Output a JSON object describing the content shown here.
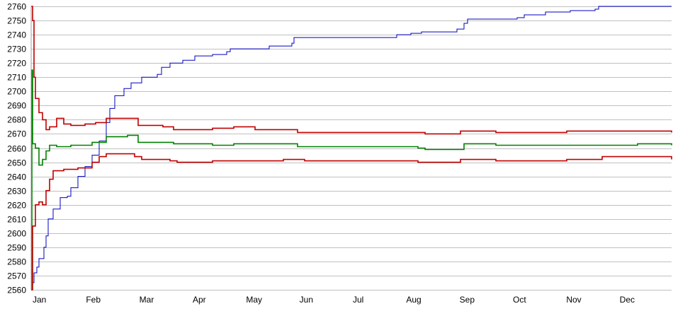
{
  "chart_data": {
    "type": "line",
    "title": "",
    "xlabel": "",
    "ylabel": "",
    "ylim": [
      2560,
      2760
    ],
    "y_ticks": [
      2560,
      2570,
      2580,
      2590,
      2600,
      2610,
      2620,
      2630,
      2640,
      2650,
      2660,
      2670,
      2680,
      2690,
      2700,
      2710,
      2720,
      2730,
      2740,
      2750,
      2760
    ],
    "x_tick_labels": [
      "Jan",
      "Feb",
      "Mar",
      "Apr",
      "May",
      "Jun",
      "Jul",
      "Aug",
      "Sep",
      "Oct",
      "Nov",
      "Dec"
    ],
    "grid": "horizontal",
    "legend": "none",
    "series": [
      {
        "color": "#0000c0",
        "points": [
          [
            1,
            2560
          ],
          [
            2,
            2565
          ],
          [
            4,
            2572
          ],
          [
            8,
            2576
          ],
          [
            11,
            2582
          ],
          [
            18,
            2590
          ],
          [
            21,
            2598
          ],
          [
            24,
            2610
          ],
          [
            31,
            2617
          ],
          [
            41,
            2625
          ],
          [
            51,
            2626
          ],
          [
            56,
            2632
          ],
          [
            66,
            2640
          ],
          [
            76,
            2647
          ],
          [
            86,
            2655
          ],
          [
            96,
            2665
          ],
          [
            106,
            2678
          ],
          [
            111,
            2688
          ],
          [
            118,
            2697
          ],
          [
            131,
            2702
          ],
          [
            141,
            2706
          ],
          [
            156,
            2710
          ],
          [
            178,
            2712
          ],
          [
            184,
            2717
          ],
          [
            196,
            2720
          ],
          [
            214,
            2722
          ],
          [
            231,
            2725
          ],
          [
            256,
            2726
          ],
          [
            276,
            2728
          ],
          [
            281,
            2730
          ],
          [
            336,
            2732
          ],
          [
            368,
            2734
          ],
          [
            371,
            2738
          ],
          [
            511,
            2738
          ],
          [
            516,
            2740
          ],
          [
            536,
            2741
          ],
          [
            551,
            2742
          ],
          [
            601,
            2744
          ],
          [
            611,
            2748
          ],
          [
            616,
            2751
          ],
          [
            686,
            2752
          ],
          [
            696,
            2754
          ],
          [
            726,
            2756
          ],
          [
            761,
            2757
          ],
          [
            796,
            2758
          ],
          [
            801,
            2760
          ],
          [
            904,
            2760
          ]
        ]
      },
      {
        "color": "#c00000",
        "points": [
          [
            0,
            2760
          ],
          [
            2,
            2750
          ],
          [
            4,
            2710
          ],
          [
            6,
            2695
          ],
          [
            11,
            2685
          ],
          [
            16,
            2680
          ],
          [
            21,
            2673
          ],
          [
            26,
            2675
          ],
          [
            36,
            2681
          ],
          [
            46,
            2677
          ],
          [
            56,
            2676
          ],
          [
            76,
            2677
          ],
          [
            91,
            2678
          ],
          [
            106,
            2681
          ],
          [
            126,
            2681
          ],
          [
            141,
            2681
          ],
          [
            151,
            2676
          ],
          [
            186,
            2675
          ],
          [
            201,
            2673
          ],
          [
            256,
            2674
          ],
          [
            286,
            2675
          ],
          [
            316,
            2673
          ],
          [
            376,
            2671
          ],
          [
            546,
            2671
          ],
          [
            556,
            2670
          ],
          [
            606,
            2672
          ],
          [
            656,
            2671
          ],
          [
            756,
            2672
          ],
          [
            856,
            2672
          ],
          [
            904,
            2671
          ]
        ]
      },
      {
        "color": "#008000",
        "points": [
          [
            0,
            2560
          ],
          [
            1,
            2715
          ],
          [
            2,
            2663
          ],
          [
            6,
            2660
          ],
          [
            11,
            2648
          ],
          [
            16,
            2652
          ],
          [
            21,
            2658
          ],
          [
            26,
            2662
          ],
          [
            36,
            2661
          ],
          [
            56,
            2662
          ],
          [
            86,
            2664
          ],
          [
            106,
            2668
          ],
          [
            136,
            2669
          ],
          [
            151,
            2664
          ],
          [
            201,
            2663
          ],
          [
            256,
            2662
          ],
          [
            286,
            2663
          ],
          [
            376,
            2661
          ],
          [
            546,
            2660
          ],
          [
            556,
            2659
          ],
          [
            611,
            2663
          ],
          [
            656,
            2662
          ],
          [
            856,
            2663
          ],
          [
            904,
            2662
          ]
        ]
      },
      {
        "color": "#c00000",
        "points": [
          [
            0,
            2560
          ],
          [
            2,
            2605
          ],
          [
            6,
            2620
          ],
          [
            11,
            2622
          ],
          [
            16,
            2620
          ],
          [
            21,
            2630
          ],
          [
            26,
            2638
          ],
          [
            31,
            2644
          ],
          [
            46,
            2645
          ],
          [
            66,
            2646
          ],
          [
            86,
            2650
          ],
          [
            96,
            2654
          ],
          [
            106,
            2656
          ],
          [
            146,
            2654
          ],
          [
            156,
            2652
          ],
          [
            196,
            2651
          ],
          [
            206,
            2650
          ],
          [
            256,
            2651
          ],
          [
            356,
            2652
          ],
          [
            386,
            2651
          ],
          [
            546,
            2650
          ],
          [
            606,
            2652
          ],
          [
            656,
            2651
          ],
          [
            756,
            2652
          ],
          [
            806,
            2654
          ],
          [
            856,
            2654
          ],
          [
            904,
            2652
          ]
        ]
      }
    ]
  }
}
